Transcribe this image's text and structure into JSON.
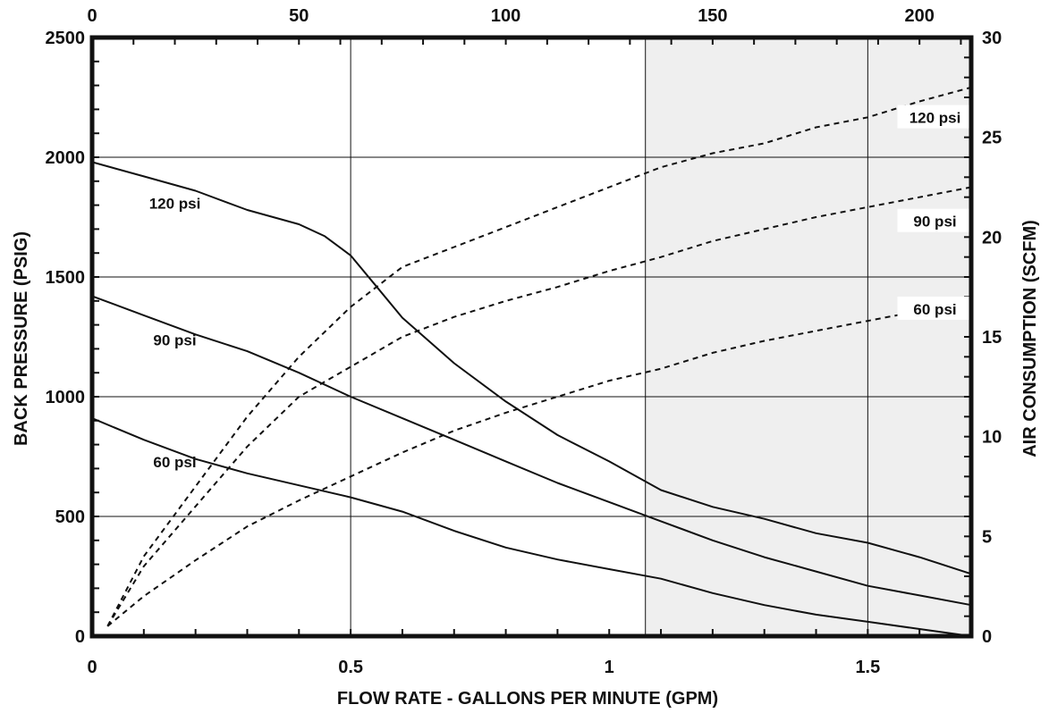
{
  "chart_data": {
    "type": "line",
    "xlabel": "FLOW RATE - GALLONS PER MINUTE (GPM)",
    "ylabel": "BACK PRESSURE  (PSIG)",
    "y2label": "AIR CONSUMPTION (SCFM)",
    "x_ticks": [
      "0",
      "0.5",
      "1",
      "1.5"
    ],
    "x_top_ticks": [
      "0",
      "50",
      "100",
      "150",
      "200"
    ],
    "y_ticks": [
      "0",
      "500",
      "1000",
      "1500",
      "2000",
      "2500"
    ],
    "y2_ticks": [
      "0",
      "5",
      "10",
      "15",
      "20",
      "25",
      "30"
    ],
    "xlim": [
      0,
      1.7
    ],
    "ylim": [
      0,
      2500
    ],
    "y2lim": [
      0,
      30
    ],
    "shaded_region_x": [
      1.07,
      1.7
    ],
    "shaded_color": "#efefef",
    "grid": true,
    "series": [
      {
        "name": "120 psi",
        "axis": "left",
        "style": "solid",
        "x": [
          0,
          0.1,
          0.2,
          0.3,
          0.4,
          0.45,
          0.5,
          0.55,
          0.6,
          0.7,
          0.8,
          0.9,
          1.0,
          1.1,
          1.2,
          1.3,
          1.4,
          1.5,
          1.6,
          1.7
        ],
        "y": [
          1980,
          1920,
          1860,
          1780,
          1720,
          1670,
          1590,
          1460,
          1330,
          1140,
          980,
          840,
          730,
          610,
          540,
          490,
          430,
          390,
          330,
          260
        ]
      },
      {
        "name": "90 psi",
        "axis": "left",
        "style": "solid",
        "x": [
          0,
          0.1,
          0.2,
          0.3,
          0.4,
          0.5,
          0.6,
          0.7,
          0.8,
          0.9,
          1.0,
          1.1,
          1.2,
          1.3,
          1.4,
          1.5,
          1.6,
          1.7
        ],
        "y": [
          1420,
          1340,
          1260,
          1190,
          1100,
          1000,
          910,
          820,
          730,
          640,
          560,
          480,
          400,
          330,
          270,
          210,
          170,
          130
        ]
      },
      {
        "name": "60 psi",
        "axis": "left",
        "style": "solid",
        "x": [
          0,
          0.1,
          0.2,
          0.3,
          0.4,
          0.5,
          0.6,
          0.7,
          0.8,
          0.9,
          1.0,
          1.1,
          1.2,
          1.3,
          1.4,
          1.5,
          1.6,
          1.7
        ],
        "y": [
          910,
          820,
          740,
          680,
          630,
          580,
          520,
          440,
          370,
          320,
          280,
          240,
          180,
          130,
          90,
          60,
          30,
          0
        ]
      },
      {
        "name": "120 psi",
        "axis": "right",
        "style": "dashed",
        "x": [
          0.03,
          0.1,
          0.2,
          0.3,
          0.4,
          0.5,
          0.6,
          0.7,
          0.8,
          0.9,
          1.0,
          1.1,
          1.2,
          1.3,
          1.4,
          1.5,
          1.6,
          1.7
        ],
        "y": [
          0.5,
          4,
          7.5,
          11,
          14,
          16.5,
          18.5,
          19.5,
          20.5,
          21.5,
          22.5,
          23.5,
          24.2,
          24.7,
          25.5,
          26,
          26.8,
          27.5
        ]
      },
      {
        "name": "90 psi",
        "axis": "right",
        "style": "dashed",
        "x": [
          0.03,
          0.1,
          0.2,
          0.3,
          0.4,
          0.5,
          0.6,
          0.7,
          0.8,
          0.9,
          1.0,
          1.1,
          1.2,
          1.3,
          1.4,
          1.5,
          1.6,
          1.7
        ],
        "y": [
          0.5,
          3.5,
          6.5,
          9.5,
          12,
          13.5,
          15,
          16,
          16.8,
          17.5,
          18.3,
          19,
          19.8,
          20.4,
          21,
          21.5,
          22,
          22.5
        ]
      },
      {
        "name": "60 psi",
        "axis": "right",
        "style": "dashed",
        "x": [
          0.03,
          0.1,
          0.2,
          0.3,
          0.4,
          0.5,
          0.6,
          0.7,
          0.8,
          0.9,
          1.0,
          1.1,
          1.2,
          1.3,
          1.4,
          1.5,
          1.6,
          1.7
        ],
        "y": [
          0.5,
          2,
          3.8,
          5.5,
          6.8,
          8,
          9.2,
          10.3,
          11.2,
          12,
          12.8,
          13.4,
          14.2,
          14.8,
          15.3,
          15.8,
          16.3,
          16.8
        ]
      }
    ],
    "labels": [
      {
        "text": "120 psi",
        "axis": "left",
        "x": 0.16,
        "y": 1800
      },
      {
        "text": "90 psi",
        "axis": "left",
        "x": 0.16,
        "y": 1230
      },
      {
        "text": "60 psi",
        "axis": "left",
        "x": 0.16,
        "y": 720
      },
      {
        "text": "120 psi",
        "axis": "right",
        "x": 1.63,
        "y": 25.9
      },
      {
        "text": "90 psi",
        "axis": "right",
        "x": 1.63,
        "y": 20.7
      },
      {
        "text": "60 psi",
        "axis": "right",
        "x": 1.63,
        "y": 16.3
      }
    ]
  }
}
